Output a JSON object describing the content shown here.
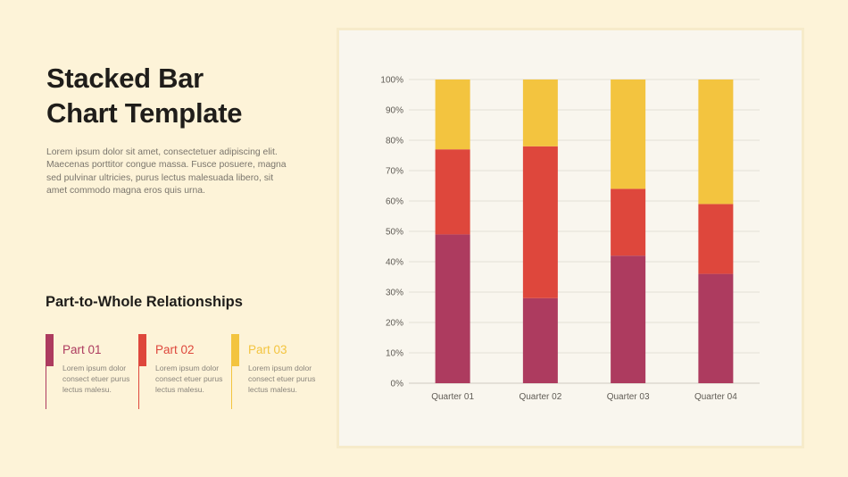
{
  "slide": {
    "title_line1": "Stacked Bar",
    "title_line2": "Chart Template",
    "description": "Lorem ipsum dolor sit amet, consectetuer adipiscing elit. Maecenas porttitor congue massa. Fusce posuere, magna sed pulvinar ultricies, purus lectus malesuada libero, sit amet commodo magna eros quis urna.",
    "subtitle": "Part-to-Whole Relationships",
    "parts": [
      {
        "label": "Part 01",
        "text": "Lorem ipsum dolor consect etuer purus lectus malesu.",
        "color": "#ad3b5f"
      },
      {
        "label": "Part 02",
        "text": "Lorem ipsum dolor consect etuer purus lectus malesu.",
        "color": "#de473c"
      },
      {
        "label": "Part 03",
        "text": "Lorem ipsum dolor consect etuer purus lectus malesu.",
        "color": "#f3c43f"
      }
    ]
  },
  "chart_data": {
    "type": "bar",
    "stacked": true,
    "categories": [
      "Quarter 01",
      "Quarter 02",
      "Quarter 03",
      "Quarter 04"
    ],
    "series": [
      {
        "values": [
          49,
          28,
          42,
          36
        ],
        "color": "#ad3b5f"
      },
      {
        "values": [
          28,
          50,
          22,
          23
        ],
        "color": "#de473c"
      },
      {
        "values": [
          23,
          22,
          36,
          41
        ],
        "color": "#f3c43f"
      }
    ],
    "yticks": [
      "0%",
      "10%",
      "20%",
      "30%",
      "40%",
      "50%",
      "60%",
      "70%",
      "80%",
      "90%",
      "100%"
    ],
    "ylim": [
      0,
      100
    ],
    "grid": true,
    "legend": "none"
  }
}
